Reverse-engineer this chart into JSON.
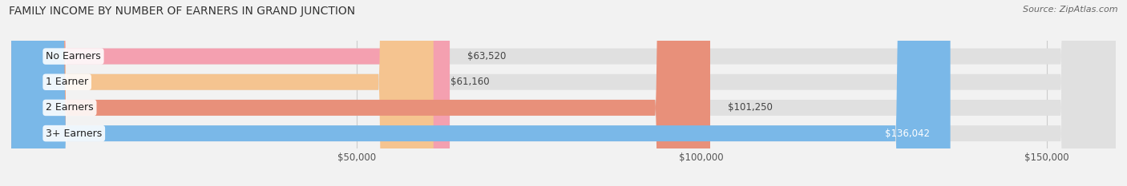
{
  "title": "FAMILY INCOME BY NUMBER OF EARNERS IN GRAND JUNCTION",
  "source": "Source: ZipAtlas.com",
  "categories": [
    "No Earners",
    "1 Earner",
    "2 Earners",
    "3+ Earners"
  ],
  "values": [
    63520,
    61160,
    101250,
    136042
  ],
  "labels": [
    "$63,520",
    "$61,160",
    "$101,250",
    "$136,042"
  ],
  "bar_colors": [
    "#f4a0b0",
    "#f5c490",
    "#e8907a",
    "#7ab8e8"
  ],
  "label_colors": [
    "#555555",
    "#555555",
    "#555555",
    "#ffffff"
  ],
  "background_color": "#f2f2f2",
  "bar_background": "#e0e0e0",
  "xmin": 0,
  "xmax": 160000,
  "xticks": [
    50000,
    100000,
    150000
  ],
  "xticklabels": [
    "$50,000",
    "$100,000",
    "$150,000"
  ],
  "title_fontsize": 10,
  "source_fontsize": 8,
  "label_fontsize": 8.5,
  "category_fontsize": 9,
  "bar_height": 0.62,
  "figsize": [
    14.06,
    2.33
  ],
  "dpi": 100
}
